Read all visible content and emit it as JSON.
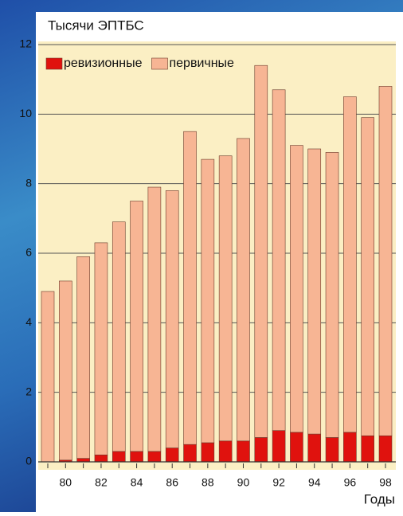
{
  "chart_data": {
    "type": "stacked_bar",
    "y_label": "Тысячи ЭПТБС",
    "x_label": "Годы",
    "categories": [
      null,
      "80",
      null,
      "82",
      null,
      "84",
      null,
      "86",
      null,
      "88",
      null,
      "90",
      null,
      "92",
      null,
      "94",
      null,
      "96",
      null,
      "98"
    ],
    "series": [
      {
        "name": "ревизионные",
        "color": "#e0120e",
        "values": [
          0,
          0.05,
          0.1,
          0.2,
          0.3,
          0.3,
          0.3,
          0.4,
          0.5,
          0.55,
          0.6,
          0.6,
          0.7,
          0.9,
          0.85,
          0.8,
          0.7,
          0.85,
          0.75,
          0.75
        ]
      },
      {
        "name": "первичные",
        "color": "#f7b594",
        "values": [
          4.9,
          5.15,
          5.8,
          6.1,
          6.6,
          7.2,
          7.6,
          7.4,
          9.0,
          8.15,
          8.2,
          8.7,
          10.7,
          9.8,
          8.25,
          8.2,
          8.2,
          9.65,
          9.15,
          10.05
        ]
      }
    ],
    "ylim": [
      0,
      12
    ],
    "yticks": [
      0,
      2,
      4,
      6,
      8,
      10,
      12
    ],
    "grid": true,
    "legend": "top-left"
  }
}
